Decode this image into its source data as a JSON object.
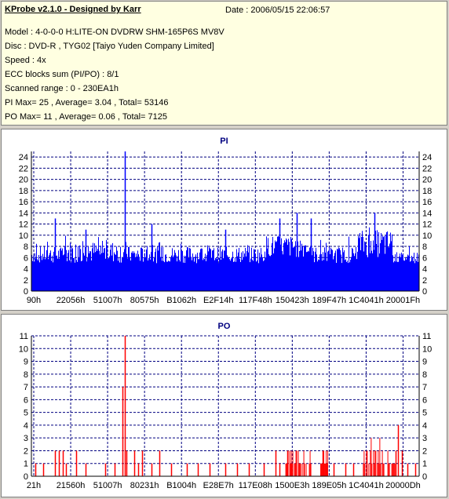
{
  "header": {
    "title": "KProbe v2.1.0 - Designed by Karr",
    "date": "Date : 2006/05/15 22:06:57",
    "lines": [
      "Model : 4-0-0-0 H:LITE-ON DVDRW SHM-165P6S MV8V",
      "Disc : DVD-R , TYG02 [Taiyo Yuden Company Limited]",
      "Speed : 4x",
      "ECC blocks sum (PI/PO) : 8/1",
      "Scanned range : 0 - 230EA1h",
      "PI Max= 25 , Average= 3.04 , Total= 53146",
      "PO Max= 11 , Average= 0.06 , Total= 7125"
    ]
  },
  "chart_data": [
    {
      "type": "bar",
      "title": "PI",
      "color": "#0000ff",
      "ylim": [
        0,
        25
      ],
      "yticks": [
        0,
        2,
        4,
        6,
        8,
        10,
        12,
        14,
        16,
        18,
        20,
        22,
        24
      ],
      "xticks": [
        "90h",
        "22056h",
        "51007h",
        "80575h",
        "B1062h",
        "E2F14h",
        "117F48h",
        "150423h",
        "189F47h",
        "1C4041h",
        "20001Fh"
      ],
      "grid": true,
      "segments": [
        {
          "x": [
            0,
            0.08
          ],
          "y": [
            5,
            8
          ]
        },
        {
          "x": [
            0.08,
            0.25
          ],
          "y": [
            5,
            9
          ]
        },
        {
          "x": [
            0.25,
            0.6
          ],
          "y": [
            5,
            8
          ]
        },
        {
          "x": [
            0.6,
            0.72
          ],
          "y": [
            6,
            10
          ]
        },
        {
          "x": [
            0.72,
            0.84
          ],
          "y": [
            5,
            8
          ]
        },
        {
          "x": [
            0.84,
            0.93
          ],
          "y": [
            6,
            11
          ]
        },
        {
          "x": [
            0.93,
            1.0
          ],
          "y": [
            5,
            7
          ]
        }
      ],
      "peaks": [
        {
          "x": 0.06,
          "y": 13
        },
        {
          "x": 0.24,
          "y": 25
        },
        {
          "x": 0.31,
          "y": 12
        },
        {
          "x": 0.64,
          "y": 13
        },
        {
          "x": 0.685,
          "y": 14
        },
        {
          "x": 0.72,
          "y": 13
        },
        {
          "x": 0.885,
          "y": 14
        },
        {
          "x": 0.14,
          "y": 11
        },
        {
          "x": 0.5,
          "y": 11
        }
      ]
    },
    {
      "type": "bar",
      "title": "PO",
      "color": "#ff0000",
      "ylim": [
        0,
        11
      ],
      "yticks": [
        0,
        1,
        2,
        3,
        4,
        5,
        6,
        7,
        8,
        9,
        10,
        11
      ],
      "xticks": [
        "21h",
        "21560h",
        "51007h",
        "80231h",
        "B1004h",
        "E28E7h",
        "117E08h",
        "1500E3h",
        "189E05h",
        "1C4041h",
        "20000Dh"
      ],
      "grid": true,
      "bars": [
        {
          "x": 0.01,
          "y": 1
        },
        {
          "x": 0.03,
          "y": 1
        },
        {
          "x": 0.06,
          "y": 2
        },
        {
          "x": 0.07,
          "y": 2
        },
        {
          "x": 0.08,
          "y": 2
        },
        {
          "x": 0.09,
          "y": 1
        },
        {
          "x": 0.115,
          "y": 2
        },
        {
          "x": 0.14,
          "y": 1
        },
        {
          "x": 0.19,
          "y": 1
        },
        {
          "x": 0.215,
          "y": 1
        },
        {
          "x": 0.235,
          "y": 7
        },
        {
          "x": 0.24,
          "y": 11
        },
        {
          "x": 0.245,
          "y": 2
        },
        {
          "x": 0.265,
          "y": 2
        },
        {
          "x": 0.275,
          "y": 1
        },
        {
          "x": 0.285,
          "y": 2
        },
        {
          "x": 0.31,
          "y": 1
        },
        {
          "x": 0.33,
          "y": 2
        },
        {
          "x": 0.36,
          "y": 1
        },
        {
          "x": 0.4,
          "y": 1
        },
        {
          "x": 0.43,
          "y": 1
        },
        {
          "x": 0.46,
          "y": 1
        },
        {
          "x": 0.5,
          "y": 1
        },
        {
          "x": 0.53,
          "y": 1
        },
        {
          "x": 0.56,
          "y": 1
        },
        {
          "x": 0.6,
          "y": 1
        },
        {
          "x": 0.63,
          "y": 2
        },
        {
          "x": 0.64,
          "y": 1
        },
        {
          "x": 0.66,
          "y": 2
        },
        {
          "x": 0.67,
          "y": 1
        },
        {
          "x": 0.75,
          "y": 2
        },
        {
          "x": 0.76,
          "y": 1
        },
        {
          "x": 0.78,
          "y": 1
        },
        {
          "x": 0.81,
          "y": 1
        },
        {
          "x": 0.83,
          "y": 1
        },
        {
          "x": 0.94,
          "y": 2
        },
        {
          "x": 0.945,
          "y": 4
        },
        {
          "x": 0.955,
          "y": 2
        },
        {
          "x": 0.97,
          "y": 1
        },
        {
          "x": 0.99,
          "y": 1
        }
      ],
      "blocks": [
        {
          "x": [
            0.655,
            0.72
          ],
          "y": [
            0,
            2
          ]
        },
        {
          "x": [
            0.745,
            0.765
          ],
          "y": [
            0,
            2
          ]
        },
        {
          "x": [
            0.855,
            0.9
          ],
          "y": [
            0,
            3
          ]
        },
        {
          "x": [
            0.9,
            0.94
          ],
          "y": [
            0,
            2
          ]
        }
      ]
    }
  ]
}
